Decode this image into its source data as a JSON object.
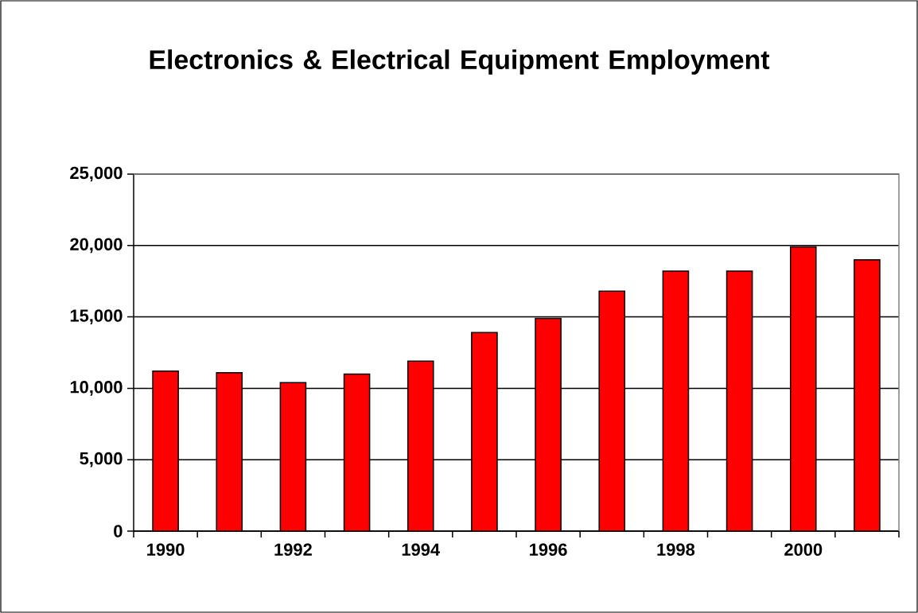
{
  "chart_data": {
    "type": "bar",
    "title": "Electronics & Electrical Equipment Employment",
    "categories": [
      "1990",
      null,
      "1992",
      null,
      "1994",
      null,
      "1996",
      null,
      "1998",
      null,
      "2000",
      null
    ],
    "values": [
      11200,
      11100,
      10400,
      11000,
      11900,
      13900,
      14900,
      16800,
      18200,
      18200,
      19900,
      19000
    ],
    "color": "#ff0000",
    "ylim": [
      0,
      25000
    ],
    "yticks": [
      0,
      {
        "value": 5000,
        "label": "5,000"
      },
      {
        "value": 10000,
        "label": "10,000"
      },
      {
        "value": 15000,
        "label": "15,000"
      },
      {
        "value": 20000,
        "label": "20,000"
      },
      {
        "value": 25000,
        "label": "25,000"
      }
    ],
    "grid": "y"
  }
}
